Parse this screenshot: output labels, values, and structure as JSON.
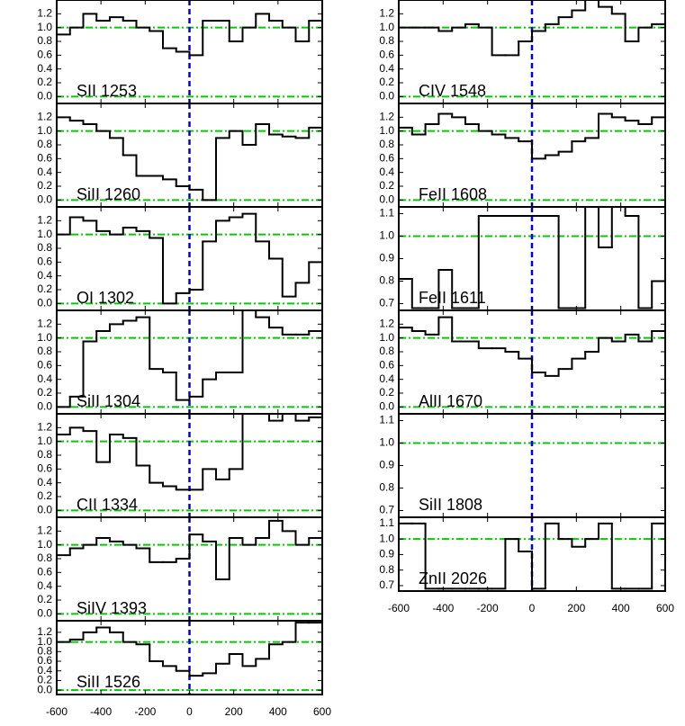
{
  "chart_data": [
    {
      "type": "step",
      "label": "SII 1253",
      "x": [
        -570,
        -510,
        -450,
        -390,
        -330,
        -270,
        -210,
        -150,
        -90,
        -30,
        30,
        90,
        150,
        210,
        270,
        330,
        390,
        450,
        510,
        570
      ],
      "values": [
        0.9,
        1.0,
        1.2,
        1.1,
        1.15,
        1.1,
        1.0,
        0.95,
        0.7,
        0.65,
        0.6,
        1.1,
        1.1,
        0.8,
        1.0,
        1.2,
        1.1,
        1.0,
        0.8,
        1.1
      ],
      "xlim": [
        -600,
        600
      ],
      "xticks": [
        -600,
        -400,
        -200,
        0,
        200,
        400,
        600
      ],
      "ylim": [
        -0.1,
        1.4
      ],
      "yticks": [
        {
          "value": 0,
          "label": "0.0"
        },
        0.2,
        0.4,
        0.6,
        0.8,
        {
          "value": 1,
          "label": "1.0"
        },
        1.2
      ],
      "hlines": [
        0,
        1
      ],
      "vline": 0,
      "color": "#000000",
      "hline_color": "#00cc00",
      "vline_color": "#0000dd"
    },
    {
      "type": "step",
      "label": "SiII 1260",
      "x": [
        -570,
        -510,
        -450,
        -390,
        -330,
        -270,
        -210,
        -150,
        -90,
        -30,
        30,
        90,
        150,
        210,
        270,
        330,
        390,
        450,
        510,
        570
      ],
      "values": [
        1.2,
        1.15,
        1.1,
        1.0,
        0.9,
        0.65,
        0.35,
        0.35,
        0.3,
        0.2,
        0.15,
        0.0,
        0.9,
        1.0,
        0.8,
        1.1,
        0.95,
        0.92,
        0.9,
        1.05
      ],
      "xlim": [
        -600,
        600
      ],
      "xticks": [
        -600,
        -400,
        -200,
        0,
        200,
        400,
        600
      ],
      "ylim": [
        -0.1,
        1.4
      ],
      "yticks": [
        {
          "value": 0,
          "label": "0.0"
        },
        0.2,
        0.4,
        0.6,
        0.8,
        {
          "value": 1,
          "label": "1.0"
        },
        1.2
      ],
      "hlines": [
        0,
        1
      ],
      "vline": 0,
      "color": "#000000",
      "hline_color": "#00cc00",
      "vline_color": "#0000dd"
    },
    {
      "type": "step",
      "label": "OI 1302",
      "x": [
        -570,
        -510,
        -450,
        -390,
        -330,
        -270,
        -210,
        -150,
        -90,
        -30,
        30,
        90,
        150,
        210,
        270,
        330,
        390,
        450,
        510,
        570
      ],
      "values": [
        1.0,
        1.25,
        1.2,
        1.05,
        1.0,
        1.1,
        1.05,
        0.95,
        0.0,
        0.15,
        0.2,
        0.9,
        1.2,
        1.25,
        1.3,
        0.9,
        0.65,
        0.1,
        0.3,
        0.6
      ],
      "xlim": [
        -600,
        600
      ],
      "xticks": [
        -600,
        -400,
        -200,
        0,
        200,
        400,
        600
      ],
      "ylim": [
        -0.1,
        1.4
      ],
      "yticks": [
        {
          "value": 0,
          "label": "0.0"
        },
        0.2,
        0.4,
        0.6,
        0.8,
        {
          "value": 1,
          "label": "1.0"
        },
        1.2
      ],
      "hlines": [
        0,
        1
      ],
      "vline": 0,
      "color": "#000000",
      "hline_color": "#00cc00",
      "vline_color": "#0000dd"
    },
    {
      "type": "step",
      "label": "SiII 1304",
      "x": [
        -570,
        -510,
        -450,
        -390,
        -330,
        -270,
        -210,
        -150,
        -90,
        -30,
        30,
        90,
        150,
        210,
        270,
        330,
        390,
        450,
        510,
        570
      ],
      "values": [
        0.0,
        0.15,
        0.95,
        1.1,
        1.2,
        1.25,
        1.3,
        0.55,
        0.5,
        0.1,
        0.15,
        0.4,
        0.5,
        0.5,
        1.4,
        1.3,
        1.15,
        1.05,
        1.05,
        1.1
      ],
      "xlim": [
        -600,
        600
      ],
      "xticks": [
        -600,
        -400,
        -200,
        0,
        200,
        400,
        600
      ],
      "ylim": [
        -0.1,
        1.4
      ],
      "yticks": [
        {
          "value": 0,
          "label": "0.0"
        },
        0.2,
        0.4,
        0.6,
        0.8,
        {
          "value": 1,
          "label": "1.0"
        },
        1.2
      ],
      "hlines": [
        0,
        1
      ],
      "vline": 0,
      "color": "#000000",
      "hline_color": "#00cc00",
      "vline_color": "#0000dd"
    },
    {
      "type": "step",
      "label": "CII 1334",
      "x": [
        -570,
        -510,
        -450,
        -390,
        -330,
        -270,
        -210,
        -150,
        -90,
        -30,
        30,
        90,
        150,
        210,
        270,
        330,
        390,
        450,
        510,
        570
      ],
      "values": [
        1.1,
        1.2,
        1.15,
        0.7,
        1.1,
        1.05,
        0.65,
        0.4,
        0.35,
        0.3,
        0.3,
        0.6,
        0.45,
        0.6,
        1.4,
        1.4,
        1.3,
        1.4,
        1.3,
        1.35
      ],
      "xlim": [
        -600,
        600
      ],
      "xticks": [
        -600,
        -400,
        -200,
        0,
        200,
        400,
        600
      ],
      "ylim": [
        -0.1,
        1.4
      ],
      "yticks": [
        {
          "value": 0,
          "label": "0.0"
        },
        0.2,
        0.4,
        0.6,
        0.8,
        {
          "value": 1,
          "label": "1.0"
        },
        1.2
      ],
      "hlines": [
        0,
        1
      ],
      "vline": 0,
      "color": "#000000",
      "hline_color": "#00cc00",
      "vline_color": "#0000dd"
    },
    {
      "type": "step",
      "label": "SiIV 1393",
      "x": [
        -570,
        -510,
        -450,
        -390,
        -330,
        -270,
        -210,
        -150,
        -90,
        -30,
        30,
        90,
        150,
        210,
        270,
        330,
        390,
        450,
        510,
        570
      ],
      "values": [
        0.85,
        0.95,
        1.0,
        1.1,
        1.05,
        1.0,
        0.95,
        0.75,
        0.75,
        0.8,
        1.15,
        1.05,
        0.5,
        1.1,
        1.0,
        1.1,
        1.35,
        1.2,
        1.0,
        1.1
      ],
      "xlim": [
        -600,
        600
      ],
      "xticks": [
        -600,
        -400,
        -200,
        0,
        200,
        400,
        600
      ],
      "ylim": [
        -0.1,
        1.4
      ],
      "yticks": [
        {
          "value": 0,
          "label": "0.0"
        },
        0.2,
        0.4,
        0.6,
        0.8,
        {
          "value": 1,
          "label": "1.0"
        },
        1.2
      ],
      "hlines": [
        0,
        1
      ],
      "vline": 0,
      "color": "#000000",
      "hline_color": "#00cc00",
      "vline_color": "#0000dd"
    },
    {
      "type": "step",
      "label": "SiII 1526",
      "x": [
        -570,
        -510,
        -450,
        -390,
        -330,
        -270,
        -210,
        -150,
        -90,
        -30,
        30,
        90,
        150,
        210,
        270,
        330,
        390,
        450,
        510,
        570
      ],
      "values": [
        1.0,
        1.05,
        1.2,
        1.3,
        1.2,
        1.0,
        0.95,
        0.6,
        0.5,
        0.4,
        0.3,
        0.35,
        0.55,
        0.75,
        0.5,
        0.65,
        0.95,
        1.0,
        1.4,
        1.4
      ],
      "xlim": [
        -600,
        600
      ],
      "xticks": [
        -600,
        -400,
        -200,
        0,
        200,
        400,
        600
      ],
      "ylim": [
        -0.09,
        1.44
      ],
      "yticks": [
        {
          "value": 0,
          "label": "0.0"
        },
        0.2,
        0.4,
        0.6,
        0.8,
        {
          "value": 1,
          "label": "1.0"
        },
        1.2
      ],
      "hlines": [
        0,
        1
      ],
      "vline": 0,
      "color": "#000000",
      "hline_color": "#00cc00",
      "vline_color": "#0000dd"
    },
    {
      "type": "step",
      "label": "CIV 1548",
      "x": [
        -570,
        -510,
        -450,
        -390,
        -330,
        -270,
        -210,
        -150,
        -90,
        -30,
        30,
        90,
        150,
        210,
        270,
        330,
        390,
        450,
        510,
        570
      ],
      "values": [
        1.0,
        1.0,
        1.0,
        0.95,
        1.0,
        1.05,
        1.0,
        0.6,
        0.6,
        0.8,
        0.95,
        1.05,
        1.15,
        1.25,
        1.4,
        1.3,
        1.2,
        0.8,
        1.0,
        1.05
      ],
      "xlim": [
        -600,
        600
      ],
      "xticks": [
        -600,
        -400,
        -200,
        0,
        200,
        400,
        600
      ],
      "ylim": [
        -0.1,
        1.4
      ],
      "yticks": [
        {
          "value": 0,
          "label": "0.0"
        },
        0.2,
        0.4,
        0.6,
        0.8,
        {
          "value": 1,
          "label": "1.0"
        },
        1.2
      ],
      "hlines": [
        0,
        1
      ],
      "vline": 0,
      "color": "#000000",
      "hline_color": "#00cc00",
      "vline_color": "#0000dd"
    },
    {
      "type": "step",
      "label": "FeII 1608",
      "x": [
        -570,
        -510,
        -450,
        -390,
        -330,
        -270,
        -210,
        -150,
        -90,
        -30,
        30,
        90,
        150,
        210,
        270,
        330,
        390,
        450,
        510,
        570
      ],
      "values": [
        1.05,
        0.95,
        1.1,
        1.25,
        1.2,
        1.1,
        1.0,
        0.95,
        0.9,
        0.85,
        0.6,
        0.65,
        0.7,
        0.85,
        0.9,
        1.25,
        1.2,
        1.15,
        1.1,
        1.2
      ],
      "xlim": [
        -600,
        600
      ],
      "xticks": [
        -600,
        -400,
        -200,
        0,
        200,
        400,
        600
      ],
      "ylim": [
        -0.1,
        1.4
      ],
      "yticks": [
        {
          "value": 0,
          "label": "0.0"
        },
        0.2,
        0.4,
        0.6,
        0.8,
        {
          "value": 1,
          "label": "1.0"
        },
        1.2
      ],
      "hlines": [
        0,
        1
      ],
      "vline": 0,
      "color": "#000000",
      "hline_color": "#00cc00",
      "vline_color": "#0000dd"
    },
    {
      "type": "step",
      "label": "FeII 1611",
      "x": [
        -570,
        -510,
        -450,
        -390,
        -330,
        -270,
        -210,
        -150,
        -90,
        -30,
        30,
        90,
        150,
        210,
        270,
        330,
        390,
        450,
        510,
        570
      ],
      "values": [
        0.81,
        0.68,
        0.68,
        0.85,
        0.68,
        0.68,
        1.09,
        1.09,
        1.09,
        1.09,
        1.09,
        1.09,
        0.68,
        0.68,
        1.13,
        0.95,
        1.13,
        1.09,
        0.68,
        0.8
      ],
      "xlim": [
        -600,
        600
      ],
      "xticks": [
        -600,
        -400,
        -200,
        0,
        200,
        400,
        600
      ],
      "ylim": [
        0.67,
        1.13
      ],
      "yticks": [
        0.7,
        0.8,
        0.9,
        {
          "value": 1,
          "label": "1.0"
        },
        1.1
      ],
      "hlines": [
        1
      ],
      "vline": 0,
      "color": "#000000",
      "hline_color": "#00cc00",
      "vline_color": "#0000dd"
    },
    {
      "type": "step",
      "label": "AlII 1670",
      "x": [
        -570,
        -510,
        -450,
        -390,
        -330,
        -270,
        -210,
        -150,
        -90,
        -30,
        30,
        90,
        150,
        210,
        270,
        330,
        390,
        450,
        510,
        570
      ],
      "values": [
        1.15,
        1.1,
        1.05,
        1.3,
        0.95,
        0.95,
        0.85,
        0.85,
        0.8,
        0.7,
        0.5,
        0.45,
        0.55,
        0.7,
        0.8,
        1.0,
        0.95,
        1.05,
        0.95,
        1.1
      ],
      "xlim": [
        -600,
        600
      ],
      "xticks": [
        -600,
        -400,
        -200,
        0,
        200,
        400,
        600
      ],
      "ylim": [
        -0.1,
        1.4
      ],
      "yticks": [
        {
          "value": 0,
          "label": "0.0"
        },
        0.2,
        0.4,
        0.6,
        0.8,
        {
          "value": 1,
          "label": "1.0"
        },
        1.2
      ],
      "hlines": [
        0,
        1
      ],
      "vline": 0,
      "color": "#000000",
      "hline_color": "#00cc00",
      "vline_color": "#0000dd"
    },
    {
      "type": "step",
      "label": "SiII 1808",
      "x": [
        -570,
        -510,
        -450,
        -390,
        -330,
        -270,
        -210,
        -150,
        -90,
        -30,
        30,
        90,
        150,
        210,
        270,
        330,
        390,
        450,
        510,
        570
      ],
      "values": [
        1.13,
        1.13,
        1.13,
        1.13,
        1.13,
        1.13,
        1.13,
        1.13,
        1.13,
        1.13,
        1.13,
        1.13,
        1.13,
        1.13,
        1.13,
        1.13,
        1.13,
        1.13,
        1.13,
        1.13
      ],
      "xlim": [
        -600,
        600
      ],
      "xticks": [
        -600,
        -400,
        -200,
        0,
        200,
        400,
        600
      ],
      "ylim": [
        0.67,
        1.13
      ],
      "yticks": [
        0.7,
        0.8,
        0.9,
        {
          "value": 1,
          "label": "1.0"
        },
        1.1
      ],
      "hlines": [
        1
      ],
      "vline": 0,
      "color": "#000000",
      "hline_color": "#00cc00",
      "vline_color": "#0000dd"
    },
    {
      "type": "step",
      "label": "ZnII 2026",
      "x": [
        -570,
        -510,
        -450,
        -390,
        -330,
        -270,
        -210,
        -150,
        -90,
        -30,
        30,
        90,
        150,
        210,
        270,
        330,
        390,
        450,
        510,
        570
      ],
      "values": [
        1.1,
        1.1,
        0.68,
        0.68,
        0.68,
        0.68,
        0.68,
        0.68,
        1.0,
        0.92,
        0.68,
        1.1,
        1.0,
        0.95,
        1.0,
        1.1,
        0.68,
        0.68,
        0.68,
        1.1
      ],
      "xlim": [
        -600,
        600
      ],
      "xticks": [
        -600,
        -400,
        -200,
        0,
        200,
        400,
        600
      ],
      "ylim": [
        0.665,
        1.14
      ],
      "yticks": [
        0.7,
        0.8,
        0.9,
        {
          "value": 1,
          "label": "1.0"
        },
        1.1
      ],
      "hlines": [
        1
      ],
      "vline": 0,
      "color": "#000000",
      "hline_color": "#00cc00",
      "vline_color": "#0000dd"
    }
  ]
}
